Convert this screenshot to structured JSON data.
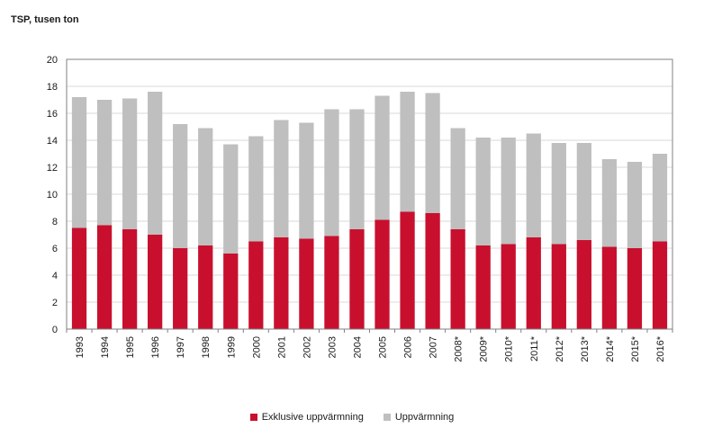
{
  "chart_data": {
    "type": "bar",
    "stacked": true,
    "ylabel": "TSP, tusen ton",
    "ylim": [
      0,
      20
    ],
    "yticks": [
      0,
      2,
      4,
      6,
      8,
      10,
      12,
      14,
      16,
      18,
      20
    ],
    "grid": true,
    "legend_position": "bottom",
    "categories": [
      "1993",
      "1994",
      "1995",
      "1996",
      "1997",
      "1998",
      "1999",
      "2000",
      "2001",
      "2002",
      "2003",
      "2004",
      "2005",
      "2006",
      "2007",
      "2008*",
      "2009*",
      "2010*",
      "2011*",
      "2012*",
      "2013*",
      "2014*",
      "2015*",
      "2016*"
    ],
    "series": [
      {
        "name": "Exklusive uppvärmning",
        "color": "#c8102e",
        "values": [
          7.5,
          7.7,
          7.4,
          7.0,
          6.0,
          6.2,
          5.6,
          6.5,
          6.8,
          6.7,
          6.9,
          7.4,
          8.1,
          8.7,
          8.6,
          7.4,
          6.2,
          6.3,
          6.8,
          6.3,
          6.6,
          6.1,
          6.0,
          6.5
        ]
      },
      {
        "name": "Uppvärmning",
        "color": "#bfbfbf",
        "values": [
          9.7,
          9.3,
          9.7,
          10.6,
          9.2,
          8.7,
          8.1,
          7.8,
          8.7,
          8.6,
          9.4,
          8.9,
          9.2,
          8.9,
          8.9,
          7.5,
          8.0,
          7.9,
          7.7,
          7.5,
          7.2,
          6.5,
          6.4,
          6.5
        ]
      }
    ]
  }
}
